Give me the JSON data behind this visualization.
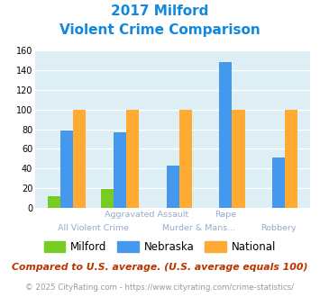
{
  "title_line1": "2017 Milford",
  "title_line2": "Violent Crime Comparison",
  "categories": [
    "All Violent Crime",
    "Aggravated Assault",
    "Murder & Mans...",
    "Rape",
    "Robbery"
  ],
  "milford": [
    12,
    19,
    0,
    0,
    0
  ],
  "nebraska": [
    79,
    77,
    43,
    148,
    51
  ],
  "national": [
    100,
    100,
    100,
    100,
    100
  ],
  "milford_color": "#77cc22",
  "nebraska_color": "#4499ee",
  "national_color": "#ffaa33",
  "bg_color": "#ddeef5",
  "ylim": [
    0,
    160
  ],
  "yticks": [
    0,
    20,
    40,
    60,
    80,
    100,
    120,
    140,
    160
  ],
  "footnote": "Compared to U.S. average. (U.S. average equals 100)",
  "copyright": "© 2025 CityRating.com - https://www.cityrating.com/crime-statistics/",
  "title_color": "#1188dd",
  "footnote_color": "#bb3300",
  "copyright_color": "#999999",
  "label_color": "#99aacc"
}
